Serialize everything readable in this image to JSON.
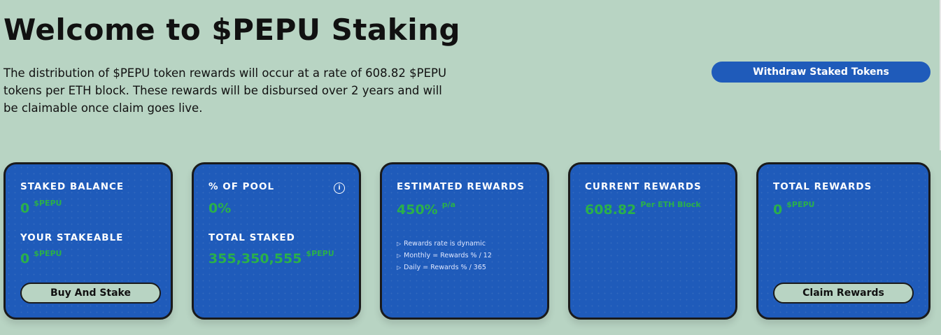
{
  "header": {
    "title": "Welcome to $PEPU Staking",
    "intro": "The distribution of $PEPU token rewards will occur at a rate of 608.82 $PEPU tokens per ETH block. These rewards will be disbursed over 2 years and will be claimable once claim goes live.",
    "withdraw_label": "Withdraw Staked Tokens"
  },
  "cards": {
    "balance": {
      "staked_label": "STAKED BALANCE",
      "staked_value": "0",
      "staked_unit": "$PEPU",
      "stakeable_label": "YOUR STAKEABLE",
      "stakeable_value": "0",
      "stakeable_unit": "$PEPU",
      "button_label": "Buy And Stake"
    },
    "pool": {
      "pool_label": "% OF POOL",
      "pool_value": "0%",
      "info_icon": "i",
      "total_label": "TOTAL STAKED",
      "total_value": "355,350,555",
      "total_unit": "$PEPU"
    },
    "estimated": {
      "label": "ESTIMATED REWARDS",
      "value": "450%",
      "unit": "p/a",
      "notes": [
        "Rewards rate is dynamic",
        "Monthly = Rewards % / 12",
        "Daily = Rewards % / 365"
      ]
    },
    "current": {
      "label": "CURRENT REWARDS",
      "value": "608.82",
      "unit": "Per ETH Block"
    },
    "total": {
      "label": "TOTAL REWARDS",
      "value": "0",
      "unit": "$PEPU",
      "button_label": "Claim Rewards"
    }
  },
  "colors": {
    "background": "#b8d4c3",
    "card": "#1f5bba",
    "accent_green": "#2ab04a",
    "border": "#1a1a1a"
  },
  "icons": [
    "info-icon",
    "bullet-icon"
  ]
}
